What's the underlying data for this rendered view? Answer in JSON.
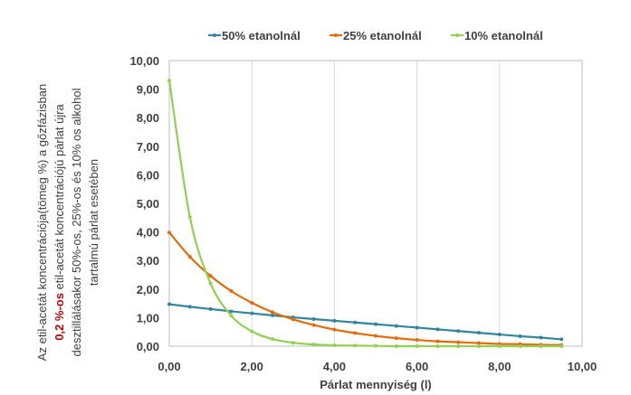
{
  "chart_data": {
    "type": "line",
    "title": "",
    "xlabel": "Párlat mennyiség (l)",
    "ylabel_lines": [
      "Az etil-acetát koncentrációja(tömeg %) a gőzfázisban",
      {
        "highlight": "0,2 %-os",
        "rest": " etil-acetát koncentrációjú párlat újra"
      },
      "desztillálásakor 50%-os, 25%-os és 10% os alkohol",
      "tartalmú párlat esetében"
    ],
    "xlim": [
      0,
      10
    ],
    "ylim": [
      0,
      10
    ],
    "x_ticks": [
      "0,00",
      "2,00",
      "4,00",
      "6,00",
      "8,00",
      "10,00"
    ],
    "y_ticks": [
      "0,00",
      "1,00",
      "2,00",
      "3,00",
      "4,00",
      "5,00",
      "6,00",
      "7,00",
      "8,00",
      "9,00",
      "10,00"
    ],
    "grid": "vertical",
    "legend_position": "top",
    "series": [
      {
        "name": "50% etanolnál",
        "color": "#31859c",
        "x": [
          0,
          0.5,
          1,
          1.5,
          2,
          2.5,
          3,
          3.5,
          4,
          4.5,
          5,
          5.5,
          6,
          6.5,
          7,
          7.5,
          8,
          8.5,
          9,
          9.5
        ],
        "y": [
          1.47,
          1.38,
          1.3,
          1.22,
          1.15,
          1.08,
          1.01,
          0.95,
          0.89,
          0.83,
          0.77,
          0.71,
          0.65,
          0.59,
          0.53,
          0.47,
          0.41,
          0.35,
          0.3,
          0.24
        ]
      },
      {
        "name": "25% etanolnál",
        "color": "#e36c09",
        "x": [
          0,
          0.5,
          1,
          1.5,
          2,
          2.5,
          3,
          3.5,
          4,
          4.5,
          5,
          5.5,
          6,
          6.5,
          7,
          7.5,
          8,
          8.5,
          9,
          9.5
        ],
        "y": [
          3.98,
          3.13,
          2.46,
          1.93,
          1.52,
          1.19,
          0.94,
          0.74,
          0.58,
          0.46,
          0.36,
          0.28,
          0.22,
          0.17,
          0.14,
          0.11,
          0.08,
          0.07,
          0.05,
          0.04
        ]
      },
      {
        "name": "10% etanolnál",
        "color": "#92d050",
        "x": [
          0,
          0.5,
          1,
          1.5,
          2,
          2.5,
          3,
          3.5,
          4,
          4.5,
          5,
          5.5,
          6,
          6.5,
          7,
          7.5,
          8,
          8.5,
          9,
          9.5
        ],
        "y": [
          9.3,
          4.52,
          2.2,
          1.07,
          0.52,
          0.25,
          0.12,
          0.06,
          0.03,
          0.02,
          0.01,
          0.0,
          0.0,
          0.0,
          0.0,
          0.0,
          0.0,
          0.0,
          0.0,
          0.0
        ]
      }
    ]
  }
}
